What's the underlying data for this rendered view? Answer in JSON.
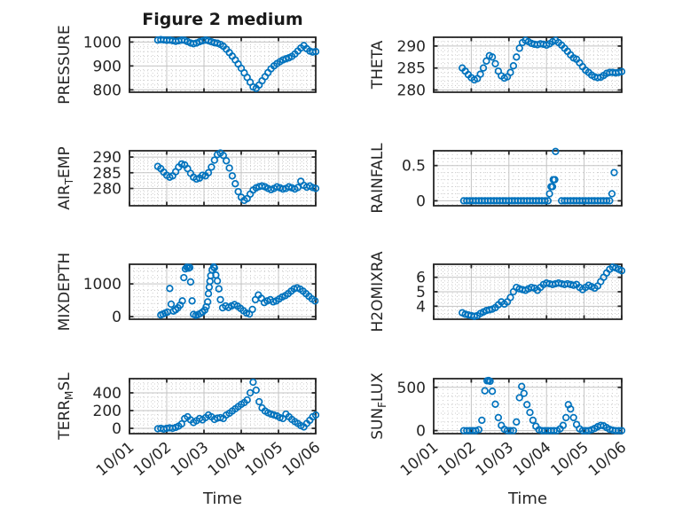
{
  "title": "Figure 2 medium",
  "xlabel": "Time",
  "x_tick_labels": [
    "10/01",
    "10/02",
    "10/03",
    "10/04",
    "10/05",
    "10/06"
  ],
  "x_tick_values": [
    1,
    2,
    3,
    4,
    5,
    6
  ],
  "style": {
    "marker_color": "#0072BD",
    "axis_color": "#262626",
    "grid_color": "#c3c3c3",
    "minor_grid_color": "#cccccc",
    "background": "#ffffff"
  },
  "x_common": [
    1.76,
    1.84,
    1.92,
    2.0,
    2.08,
    2.16,
    2.24,
    2.32,
    2.4,
    2.48,
    2.56,
    2.64,
    2.72,
    2.8,
    2.88,
    2.96,
    3.04,
    3.12,
    3.2,
    3.28,
    3.36,
    3.44,
    3.52,
    3.6,
    3.68,
    3.76,
    3.84,
    3.92,
    4.0,
    4.08,
    4.16,
    4.24,
    4.32,
    4.4,
    4.48,
    4.56,
    4.64,
    4.72,
    4.8,
    4.88,
    4.96,
    5.04,
    5.12,
    5.2,
    5.28,
    5.36,
    5.44,
    5.52,
    5.6,
    5.68,
    5.76,
    5.84,
    5.92,
    6.0
  ],
  "chart_data": [
    {
      "type": "scatter",
      "name": "pressure",
      "col": 0,
      "row": 0,
      "ylabel": "PRESSURE",
      "ylabel_parts": [
        {
          "text": "PRESSURE"
        }
      ],
      "yticks": [
        800,
        900,
        1000
      ],
      "ylim": [
        790,
        1020
      ],
      "yminor": 5,
      "y": [
        1008,
        1010,
        1009,
        1007,
        1008,
        1006,
        1003,
        1005,
        1008,
        1007,
        1002,
        996,
        993,
        996,
        1001,
        1005,
        1008,
        1006,
        1001,
        997,
        995,
        990,
        982,
        970,
        956,
        941,
        925,
        908,
        890,
        871,
        852,
        832,
        812,
        806,
        820,
        838,
        855,
        872,
        888,
        900,
        910,
        918,
        925,
        930,
        934,
        940,
        950,
        962,
        975,
        985,
        972,
        962,
        958,
        960
      ]
    },
    {
      "type": "scatter",
      "name": "theta",
      "col": 1,
      "row": 0,
      "ylabel": "THETA",
      "ylabel_parts": [
        {
          "text": "THETA"
        }
      ],
      "yticks": [
        280,
        285,
        290
      ],
      "ylim": [
        279.5,
        292
      ],
      "yminor": 5,
      "y": [
        285.0,
        284.3,
        283.5,
        282.8,
        282.3,
        282.6,
        283.6,
        285.0,
        286.6,
        287.8,
        287.5,
        286.0,
        284.3,
        283.2,
        282.7,
        283.0,
        284.0,
        285.5,
        287.5,
        289.5,
        290.8,
        291.3,
        291.0,
        290.6,
        290.4,
        290.3,
        290.5,
        290.4,
        290.2,
        290.5,
        291.0,
        291.3,
        290.8,
        290.2,
        289.5,
        288.8,
        288.0,
        287.3,
        287.0,
        286.2,
        285.3,
        284.5,
        284.0,
        283.4,
        283.0,
        282.8,
        282.9,
        283.3,
        283.8,
        284.0,
        284.0,
        283.9,
        284.0,
        284.2
      ]
    },
    {
      "type": "scatter",
      "name": "air-temp",
      "col": 0,
      "row": 1,
      "ylabel": "AIR_TEMP",
      "ylabel_parts": [
        {
          "text": "AIR"
        },
        {
          "text": "T",
          "sub": true
        },
        {
          "text": "EMP"
        }
      ],
      "yticks": [
        280,
        285,
        290
      ],
      "ylim": [
        274.5,
        292
      ],
      "yminor": 5,
      "y": [
        287.0,
        286.3,
        285.2,
        284.2,
        283.6,
        284.0,
        285.3,
        286.8,
        287.8,
        287.5,
        286.3,
        284.8,
        283.6,
        283.0,
        283.3,
        284.2,
        284.0,
        285.0,
        286.8,
        289.0,
        290.8,
        291.3,
        290.5,
        288.8,
        286.5,
        284.0,
        281.5,
        279.0,
        277.2,
        276.2,
        276.8,
        278.2,
        279.5,
        280.2,
        280.6,
        280.8,
        280.5,
        280.0,
        279.6,
        280.0,
        280.5,
        280.2,
        279.8,
        280.0,
        280.5,
        280.2,
        279.8,
        280.3,
        282.3,
        281.0,
        280.4,
        280.8,
        280.3,
        280.0
      ]
    },
    {
      "type": "scatter",
      "name": "rainfall",
      "col": 1,
      "row": 1,
      "ylabel": "RAINFALL",
      "ylabel_parts": [
        {
          "text": "RAINFALL"
        }
      ],
      "yticks": [
        0,
        0.5
      ],
      "ylim": [
        -0.07,
        0.71
      ],
      "yminor": 5,
      "x": [
        1.8,
        1.88,
        1.96,
        2.04,
        2.12,
        2.2,
        2.28,
        2.36,
        2.44,
        2.52,
        2.6,
        2.68,
        2.76,
        2.84,
        2.92,
        3.0,
        3.08,
        3.16,
        3.24,
        3.32,
        3.4,
        3.48,
        3.56,
        3.64,
        3.72,
        3.8,
        3.88,
        3.96,
        4.04,
        4.08,
        4.12,
        4.16,
        4.18,
        4.22,
        4.24,
        4.4,
        4.48,
        4.56,
        4.64,
        4.72,
        4.8,
        4.88,
        4.96,
        5.04,
        5.12,
        5.2,
        5.28,
        5.36,
        5.44,
        5.52,
        5.6,
        5.68,
        5.74,
        5.8
      ],
      "y": [
        0,
        0,
        0,
        0,
        0,
        0,
        0,
        0,
        0,
        0,
        0,
        0,
        0,
        0,
        0,
        0,
        0,
        0,
        0,
        0,
        0,
        0,
        0,
        0,
        0,
        0,
        0,
        0,
        0,
        0.1,
        0.2,
        0.2,
        0.3,
        0.3,
        0.7,
        0,
        0,
        0,
        0,
        0,
        0,
        0,
        0,
        0,
        0,
        0,
        0,
        0,
        0,
        0,
        0,
        0,
        0.1,
        0.4
      ]
    },
    {
      "type": "scatter",
      "name": "mixdepth",
      "col": 0,
      "row": 2,
      "ylabel": "MIXDEPTH",
      "ylabel_parts": [
        {
          "text": "MIXDEPTH"
        }
      ],
      "yticks": [
        0,
        1000
      ],
      "ylim": [
        -80,
        1600
      ],
      "yminor": 5,
      "x": [
        1.84,
        1.9,
        1.96,
        2.02,
        2.08,
        2.12,
        2.18,
        2.24,
        2.3,
        2.36,
        2.42,
        2.46,
        2.5,
        2.54,
        2.58,
        2.62,
        2.64,
        2.68,
        2.72,
        2.78,
        2.84,
        2.9,
        2.96,
        3.02,
        3.06,
        3.1,
        3.12,
        3.14,
        3.16,
        3.18,
        3.22,
        3.26,
        3.28,
        3.32,
        3.36,
        3.4,
        3.44,
        3.5,
        3.58,
        3.66,
        3.74,
        3.82,
        3.9,
        3.98,
        4.06,
        4.14,
        4.22,
        4.3,
        4.38,
        4.46,
        4.54,
        4.62,
        4.7,
        4.78,
        4.86,
        4.94,
        5.02,
        5.1,
        5.18,
        5.26,
        5.34,
        5.42,
        5.5,
        5.58,
        5.66,
        5.74,
        5.82,
        5.9,
        5.98
      ],
      "y": [
        50,
        80,
        110,
        140,
        860,
        380,
        170,
        210,
        270,
        350,
        480,
        1190,
        1460,
        1510,
        1480,
        1500,
        1060,
        480,
        70,
        40,
        60,
        95,
        140,
        200,
        300,
        450,
        700,
        900,
        1080,
        1250,
        1430,
        1520,
        1490,
        1270,
        1090,
        850,
        520,
        270,
        330,
        280,
        330,
        370,
        320,
        250,
        180,
        110,
        80,
        220,
        520,
        660,
        560,
        430,
        480,
        520,
        450,
        480,
        540,
        600,
        640,
        700,
        780,
        850,
        880,
        840,
        780,
        700,
        620,
        540,
        480
      ]
    },
    {
      "type": "scatter",
      "name": "h2omixra",
      "col": 1,
      "row": 2,
      "ylabel": "H2OMIXRA",
      "ylabel_parts": [
        {
          "text": "H2OMIXRA"
        }
      ],
      "yticks": [
        4,
        5,
        6
      ],
      "ylim": [
        3.1,
        6.9
      ],
      "yminor": 4,
      "y": [
        3.55,
        3.45,
        3.4,
        3.35,
        3.3,
        3.35,
        3.5,
        3.6,
        3.7,
        3.75,
        3.8,
        3.9,
        4.1,
        4.3,
        4.15,
        4.3,
        4.6,
        5.0,
        5.3,
        5.2,
        5.15,
        5.1,
        5.2,
        5.3,
        5.25,
        5.1,
        5.3,
        5.5,
        5.6,
        5.55,
        5.5,
        5.55,
        5.6,
        5.55,
        5.5,
        5.55,
        5.5,
        5.45,
        5.5,
        5.3,
        5.15,
        5.3,
        5.45,
        5.35,
        5.25,
        5.4,
        5.7,
        6.0,
        6.3,
        6.55,
        6.7,
        6.65,
        6.55,
        6.45
      ]
    },
    {
      "type": "scatter",
      "name": "terr-msl",
      "col": 0,
      "row": 3,
      "ylabel": "TERR_MSL",
      "ylabel_parts": [
        {
          "text": "TERR"
        },
        {
          "text": "M",
          "sub": true
        },
        {
          "text": "SL"
        }
      ],
      "yticks": [
        0,
        200,
        400
      ],
      "ylim": [
        -60,
        560
      ],
      "yminor": 4,
      "y": [
        -5,
        0,
        -8,
        0,
        5,
        0,
        10,
        25,
        50,
        110,
        130,
        95,
        65,
        85,
        110,
        95,
        120,
        150,
        130,
        100,
        115,
        120,
        110,
        150,
        170,
        195,
        220,
        245,
        270,
        290,
        320,
        400,
        520,
        430,
        300,
        230,
        195,
        175,
        160,
        150,
        140,
        120,
        110,
        160,
        130,
        100,
        75,
        55,
        30,
        15,
        55,
        90,
        130,
        150
      ]
    },
    {
      "type": "scatter",
      "name": "sun-flux",
      "col": 1,
      "row": 3,
      "ylabel": "SUN_FLUX",
      "ylabel_parts": [
        {
          "text": "SUN"
        },
        {
          "text": "F",
          "sub": true
        },
        {
          "text": "LUX"
        }
      ],
      "yticks": [
        0,
        500
      ],
      "ylim": [
        -35,
        600
      ],
      "yminor": 5,
      "x": [
        1.8,
        1.88,
        1.96,
        2.04,
        2.12,
        2.2,
        2.28,
        2.36,
        2.42,
        2.46,
        2.5,
        2.56,
        2.64,
        2.72,
        2.8,
        2.88,
        2.96,
        3.04,
        3.12,
        3.2,
        3.28,
        3.34,
        3.4,
        3.48,
        3.56,
        3.64,
        3.72,
        3.8,
        3.88,
        3.96,
        4.04,
        4.12,
        4.2,
        4.28,
        4.36,
        4.44,
        4.52,
        4.58,
        4.64,
        4.72,
        4.8,
        4.88,
        4.96,
        5.04,
        5.12,
        5.2,
        5.28,
        5.36,
        5.44,
        5.52,
        5.6,
        5.68,
        5.76,
        5.84,
        5.92,
        6.0
      ],
      "y": [
        0,
        0,
        0,
        0,
        0,
        10,
        120,
        460,
        575,
        580,
        570,
        455,
        305,
        150,
        60,
        15,
        0,
        0,
        0,
        100,
        380,
        510,
        430,
        300,
        210,
        120,
        50,
        10,
        0,
        0,
        0,
        0,
        0,
        0,
        20,
        60,
        150,
        300,
        250,
        150,
        70,
        20,
        0,
        0,
        0,
        10,
        25,
        45,
        60,
        55,
        35,
        15,
        5,
        0,
        0,
        0
      ]
    }
  ]
}
